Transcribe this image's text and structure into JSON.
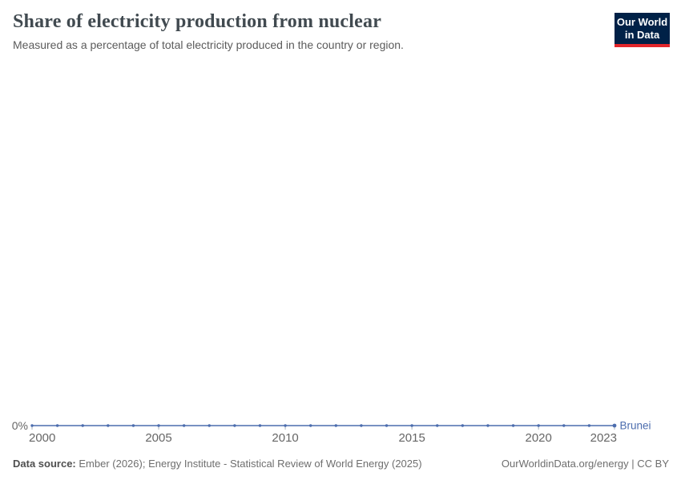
{
  "header": {
    "title": "Share of electricity production from nuclear",
    "subtitle": "Measured as a percentage of total electricity produced in the country or region."
  },
  "logo": {
    "line1": "Our World",
    "line2": "in Data",
    "bg_color": "#002147",
    "stripe_color": "#E2262B"
  },
  "chart_data": {
    "type": "line",
    "title": "Share of electricity production from nuclear",
    "x": [
      2000,
      2001,
      2002,
      2003,
      2004,
      2005,
      2006,
      2007,
      2008,
      2009,
      2010,
      2011,
      2012,
      2013,
      2014,
      2015,
      2016,
      2017,
      2018,
      2019,
      2020,
      2021,
      2022,
      2023
    ],
    "series": [
      {
        "name": "Brunei",
        "color": "#4C6DAE",
        "values": [
          0,
          0,
          0,
          0,
          0,
          0,
          0,
          0,
          0,
          0,
          0,
          0,
          0,
          0,
          0,
          0,
          0,
          0,
          0,
          0,
          0,
          0,
          0,
          0
        ]
      }
    ],
    "x_ticks": [
      2000,
      2005,
      2010,
      2015,
      2020,
      2023
    ],
    "y_axis": {
      "tick_label": "0%",
      "min": 0
    },
    "grid": false,
    "legend": "end-of-line-label",
    "xlabel": "",
    "ylabel": "",
    "tick_color": "#a9b4be",
    "tick_label_color": "#666666"
  },
  "footer": {
    "source_label": "Data source:",
    "source_text": " Ember (2026); Energy Institute - Statistical Review of World Energy (2025)",
    "url_text": "OurWorldinData.org/energy",
    "separator": " | ",
    "license_text": "CC BY"
  }
}
